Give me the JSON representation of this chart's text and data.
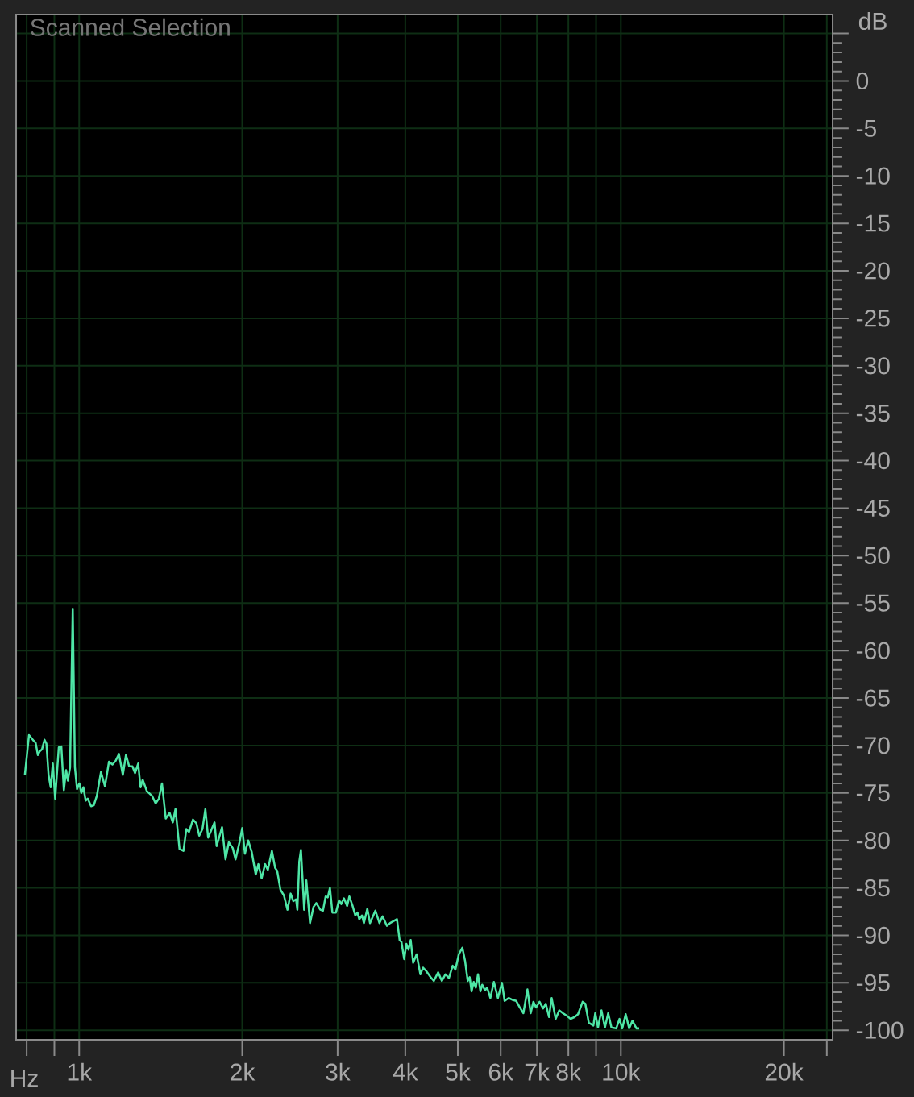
{
  "chart_data": {
    "type": "line",
    "title": "Scanned Selection",
    "xlabel": "Hz",
    "ylabel": "dB",
    "log": "x",
    "grid": true,
    "xlim": [
      765,
      24600
    ],
    "ylim": [
      -101,
      7
    ],
    "xticks": [
      {
        "value": 800,
        "label": null
      },
      {
        "value": 900,
        "label": null
      },
      {
        "value": 1000,
        "label": "1k"
      },
      {
        "value": 2000,
        "label": "2k"
      },
      {
        "value": 3000,
        "label": "3k"
      },
      {
        "value": 4000,
        "label": "4k"
      },
      {
        "value": 5000,
        "label": "5k"
      },
      {
        "value": 6000,
        "label": "6k"
      },
      {
        "value": 7000,
        "label": "7k"
      },
      {
        "value": 8000,
        "label": "8k"
      },
      {
        "value": 9000,
        "label": null
      },
      {
        "value": 10000,
        "label": "10k"
      },
      {
        "value": 20000,
        "label": "20k"
      },
      {
        "value": 24000,
        "label": null
      }
    ],
    "yticks": [
      {
        "value": 5,
        "label": null
      },
      0,
      -5,
      -10,
      -15,
      -20,
      -25,
      -30,
      -35,
      -40,
      -45,
      -50,
      -55,
      -60,
      -65,
      -70,
      -75,
      -80,
      -85,
      -90,
      -95,
      -100
    ],
    "x": [
      794,
      808,
      824,
      831,
      839,
      846,
      854,
      863,
      870,
      878,
      886,
      894,
      903,
      917,
      927,
      937,
      946,
      953,
      962,
      973,
      982,
      991,
      1001,
      1009,
      1018,
      1028,
      1037,
      1052,
      1064,
      1078,
      1097,
      1116,
      1135,
      1152,
      1168,
      1184,
      1204,
      1220,
      1237,
      1254,
      1268,
      1285,
      1298,
      1310,
      1333,
      1363,
      1384,
      1403,
      1422,
      1445,
      1469,
      1489,
      1506,
      1532,
      1558,
      1577,
      1595,
      1622,
      1646,
      1666,
      1689,
      1710,
      1730,
      1778,
      1794,
      1836,
      1863,
      1889,
      1921,
      1944,
      1977,
      2000,
      2023,
      2051,
      2082,
      2118,
      2142,
      2172,
      2204,
      2230,
      2269,
      2300,
      2320,
      2353,
      2388,
      2424,
      2457,
      2485,
      2514,
      2528,
      2549,
      2567,
      2587,
      2602,
      2626,
      2668,
      2708,
      2740,
      2787,
      2819,
      2851,
      2877,
      2904,
      2934,
      2978,
      3019,
      3047,
      3082,
      3124,
      3153,
      3197,
      3234,
      3264,
      3289,
      3327,
      3355,
      3404,
      3443,
      3523,
      3584,
      3633,
      3700,
      3751,
      3861,
      3905,
      3936,
      3982,
      4018,
      4055,
      4093,
      4136,
      4197,
      4265,
      4314,
      4378,
      4454,
      4516,
      4600,
      4673,
      4744,
      4815,
      4893,
      4949,
      5022,
      5098,
      5157,
      5216,
      5259,
      5301,
      5350,
      5398,
      5448,
      5504,
      5548,
      5613,
      5663,
      5742,
      5829,
      5930,
      6033,
      6101,
      6207,
      6314,
      6407,
      6496,
      6608,
      6723,
      6816,
      6896,
      6974,
      7078,
      7186,
      7268,
      7369,
      7453,
      7581,
      7697,
      7819,
      7965,
      8075,
      8215,
      8337,
      8501,
      8598,
      8726,
      8898,
      8969,
      9074,
      9209,
      9346,
      9476,
      9607,
      9807,
      9942,
      10059,
      10208,
      10360,
      10503,
      10685,
      10810
    ],
    "series": [
      {
        "color": "#4ee6a6",
        "values": [
          -73.1,
          -68.9,
          -69.5,
          -69.7,
          -71.0,
          -70.6,
          -70.4,
          -69.4,
          -69.8,
          -73.1,
          -74.4,
          -71.9,
          -75.6,
          -70.2,
          -70.1,
          -74.7,
          -72.6,
          -73.7,
          -72.3,
          -55.6,
          -72.3,
          -74.6,
          -74.0,
          -75.0,
          -74.4,
          -75.8,
          -75.6,
          -76.4,
          -76.3,
          -75.3,
          -72.8,
          -74.3,
          -71.7,
          -72.0,
          -71.6,
          -70.9,
          -73.1,
          -71.0,
          -72.2,
          -72.2,
          -72.9,
          -71.9,
          -74.4,
          -73.6,
          -74.8,
          -75.3,
          -76.1,
          -75.6,
          -74.0,
          -77.7,
          -77.1,
          -78.1,
          -76.7,
          -80.9,
          -81.1,
          -78.8,
          -79.1,
          -77.8,
          -78.2,
          -79.5,
          -78.8,
          -76.7,
          -79.7,
          -78.1,
          -80.6,
          -78.6,
          -82.0,
          -80.2,
          -80.8,
          -82.0,
          -80.2,
          -78.7,
          -81.4,
          -80.0,
          -81.2,
          -83.6,
          -82.5,
          -84.0,
          -82.5,
          -83.1,
          -81.1,
          -82.9,
          -83.2,
          -85.2,
          -85.8,
          -87.3,
          -85.6,
          -86.4,
          -86.2,
          -87.3,
          -82.2,
          -81.0,
          -84.5,
          -87.3,
          -84.2,
          -88.7,
          -87.0,
          -86.6,
          -87.3,
          -87.4,
          -85.9,
          -86.0,
          -85.0,
          -87.6,
          -87.6,
          -86.3,
          -86.7,
          -86.1,
          -86.9,
          -85.9,
          -86.9,
          -87.9,
          -87.6,
          -88.3,
          -87.9,
          -88.7,
          -87.2,
          -88.7,
          -87.4,
          -88.7,
          -88.0,
          -89.0,
          -88.7,
          -88.3,
          -90.5,
          -90.7,
          -92.5,
          -90.9,
          -91.5,
          -90.5,
          -92.9,
          -92.0,
          -94.1,
          -93.4,
          -93.8,
          -94.4,
          -94.8,
          -93.9,
          -94.8,
          -94.1,
          -94.5,
          -93.2,
          -93.6,
          -92.0,
          -91.3,
          -92.7,
          -94.8,
          -94.4,
          -95.9,
          -94.9,
          -95.5,
          -94.1,
          -95.9,
          -95.2,
          -95.8,
          -95.5,
          -96.6,
          -94.9,
          -96.6,
          -95.0,
          -96.9,
          -96.6,
          -96.8,
          -96.9,
          -97.5,
          -98.2,
          -95.7,
          -98.2,
          -97.0,
          -97.6,
          -97.0,
          -97.7,
          -97.2,
          -98.6,
          -96.6,
          -98.8,
          -97.9,
          -98.2,
          -98.5,
          -98.8,
          -98.6,
          -98.3,
          -97.0,
          -97.2,
          -99.2,
          -99.5,
          -98.2,
          -99.7,
          -97.9,
          -99.7,
          -98.2,
          -99.7,
          -99.8,
          -98.8,
          -99.8,
          -98.3,
          -99.8,
          -99.0,
          -99.8,
          -99.8
        ]
      }
    ]
  }
}
